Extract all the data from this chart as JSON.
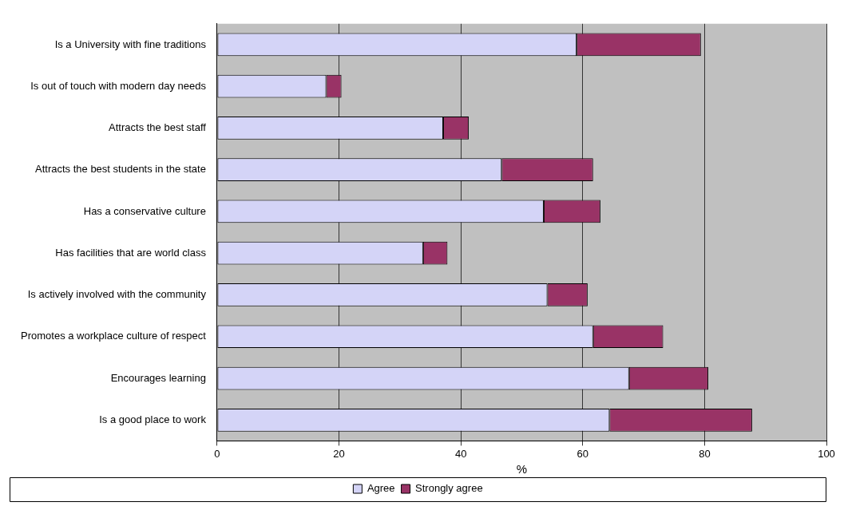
{
  "chart_data": {
    "type": "bar",
    "orientation": "horizontal",
    "stacked": true,
    "xlabel": "%",
    "categories": [
      "Is a University with fine traditions",
      "Is out of touch with modern day needs",
      "Attracts the best staff",
      "Attracts the best students in the state",
      "Has a conservative culture",
      "Has facilities that are world class",
      "Is actively involved with the community",
      "Promotes a workplace culture of respect",
      "Encourages learning",
      "Is a good place to work"
    ],
    "series": [
      {
        "name": "Agree",
        "color": "#d4d4f7",
        "values": [
          59.0,
          17.9,
          37.1,
          46.7,
          53.6,
          33.8,
          54.2,
          61.7,
          67.6,
          64.4
        ]
      },
      {
        "name": "Strongly agree",
        "color": "#993366",
        "values": [
          20.4,
          2.5,
          4.2,
          15.0,
          9.3,
          4.0,
          6.6,
          11.5,
          13.0,
          23.4
        ]
      }
    ],
    "xlim": [
      0,
      100
    ],
    "xticks": [
      0,
      20,
      40,
      60,
      80,
      100
    ],
    "grid": "x",
    "legend": "bottom"
  }
}
